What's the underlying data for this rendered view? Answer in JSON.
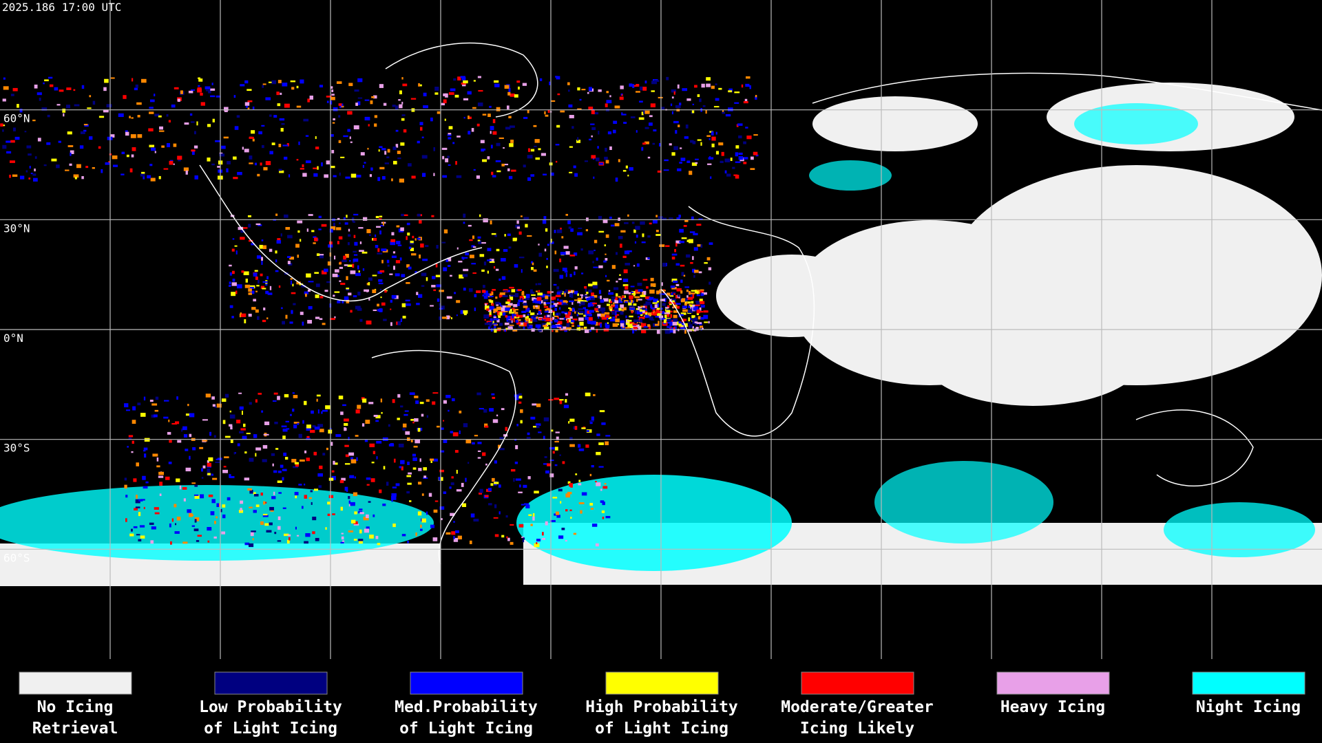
{
  "header": {
    "timestamp": "2025.186 17:00 UTC"
  },
  "latitude_labels": [
    "60°N",
    "30°N",
    "0°N",
    "30°S",
    "60°S"
  ],
  "legend": [
    {
      "color": "#f0f0f0",
      "lines": [
        "No Icing",
        "Retrieval"
      ]
    },
    {
      "color": "#000080",
      "lines": [
        "Low Probability",
        "of Light Icing"
      ]
    },
    {
      "color": "#0000ff",
      "lines": [
        "Med.Probability",
        "of Light Icing"
      ]
    },
    {
      "color": "#ffff00",
      "lines": [
        "High Probability",
        "of Light Icing"
      ]
    },
    {
      "color": "#ff0000",
      "lines": [
        "Moderate/Greater",
        "Icing Likely"
      ]
    },
    {
      "color": "#e8a0e8",
      "lines": [
        "Heavy Icing"
      ]
    },
    {
      "color": "#00ffff",
      "lines": [
        "Night Icing"
      ]
    }
  ]
}
